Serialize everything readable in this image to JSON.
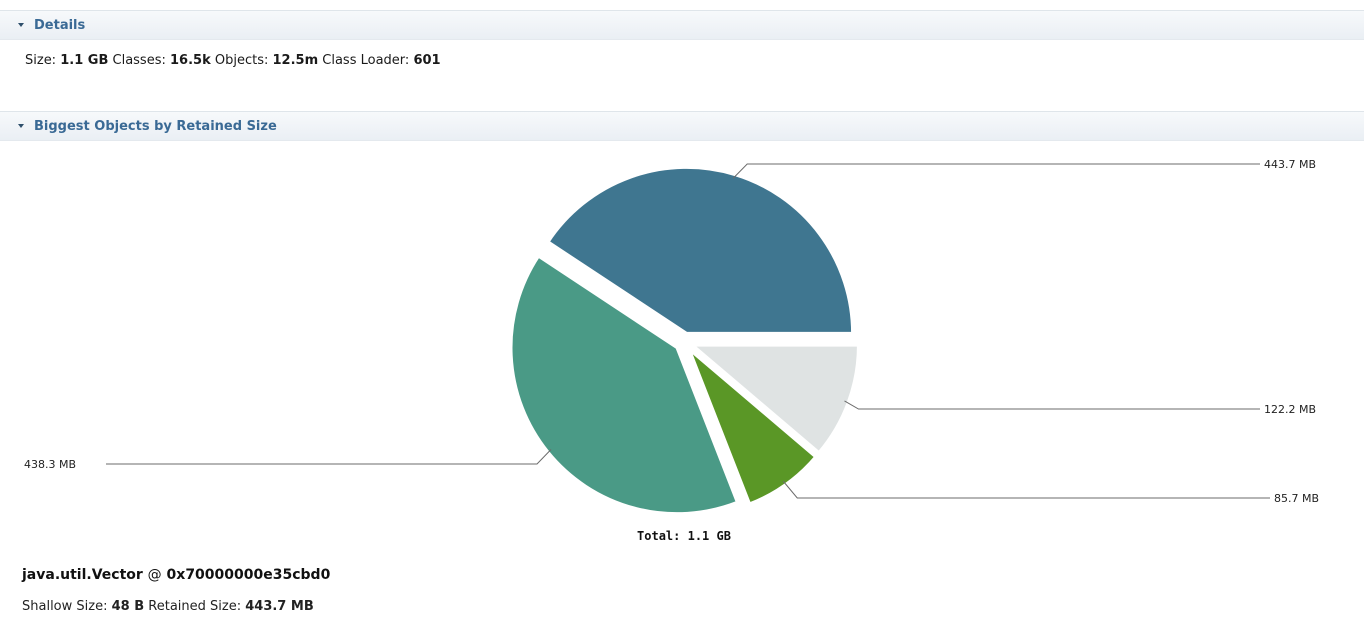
{
  "details": {
    "header": "Details",
    "size_label": "Size:",
    "size_value": "1.1 GB",
    "classes_label": "Classes:",
    "classes_value": "16.5k",
    "objects_label": "Objects:",
    "objects_value": "12.5m",
    "class_loader_label": "Class Loader:",
    "class_loader_value": "601"
  },
  "biggest_objects": {
    "header": "Biggest Objects by Retained Size",
    "total_label": "Total: 1.1 GB"
  },
  "chart_data": {
    "type": "pie",
    "title": "",
    "values": [
      443.7,
      122.2,
      85.7,
      438.3
    ],
    "labels": [
      "443.7 MB",
      "122.2 MB",
      "85.7 MB",
      "438.3 MB"
    ],
    "colors": [
      "#3f7690",
      "#dfe3e3",
      "#5a9726",
      "#4a9a86"
    ],
    "total": "Total: 1.1 GB"
  },
  "selected": {
    "name": "java.util.Vector",
    "at": "@",
    "address": "0x70000000e35cbd0",
    "shallow_label": "Shallow Size:",
    "shallow_value": "48 B",
    "retained_label": "Retained Size:",
    "retained_value": "443.7 MB"
  }
}
